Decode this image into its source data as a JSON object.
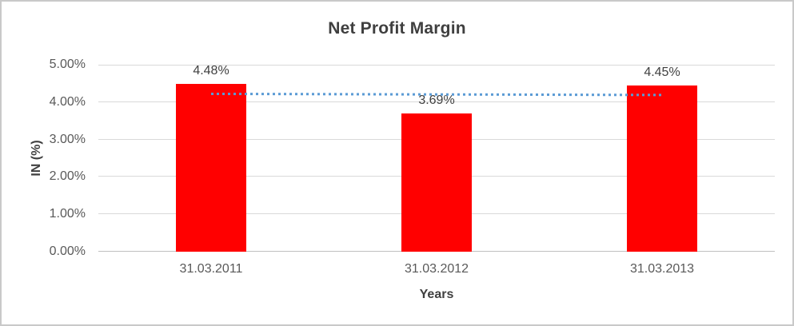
{
  "chart_data": {
    "type": "bar",
    "title": "Net Profit Margin",
    "xlabel": "Years",
    "ylabel": "IN (%)",
    "categories": [
      "31.03.2011",
      "31.03.2012",
      "31.03.2013"
    ],
    "values": [
      4.48,
      3.69,
      4.45
    ],
    "value_labels": [
      "4.48%",
      "3.69%",
      "4.45%"
    ],
    "ylim": [
      0,
      5
    ],
    "ytick_step": 1,
    "ytick_labels": [
      "0.00%",
      "1.00%",
      "2.00%",
      "3.00%",
      "4.00%",
      "5.00%"
    ],
    "grid": true,
    "legend": "none",
    "trendline": {
      "kind": "linear",
      "style": "dotted",
      "start_value": 4.22,
      "end_value": 4.19,
      "color": "#5B9BD5"
    },
    "colors": {
      "bar": "#FF0000",
      "gridline": "#D9D9D9",
      "axis_line": "#BFBFBF",
      "tick_text": "#595959",
      "label_text": "#404040",
      "title_text": "#3F3F3F",
      "background": "#FFFFFF",
      "frame_border": "#C9C9C9"
    }
  }
}
